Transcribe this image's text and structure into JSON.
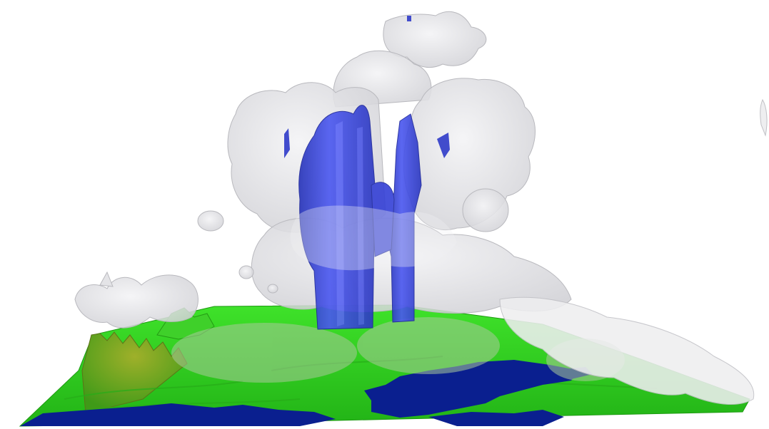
{
  "scene": {
    "subject": "3d-storm-cloud-over-terrain",
    "colors": {
      "background": "#ffffff",
      "cloud": "#e6e6e8",
      "cloud_shadow": "#c9c9cd",
      "precip_core": "#3a45e6",
      "precip_core_dark": "#1f2aa8",
      "terrain_green": "#2fcc1f",
      "terrain_green_dark": "#1f9a14",
      "terrain_olive": "#7a8a22",
      "water": "#0a1f8f"
    }
  }
}
